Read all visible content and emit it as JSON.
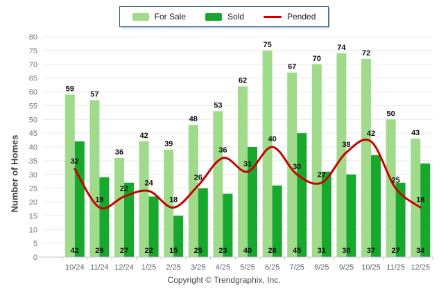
{
  "legend": {
    "items": [
      {
        "label": "For Sale",
        "kind": "bar",
        "color": "#A0DB8C"
      },
      {
        "label": "Sold",
        "kind": "bar",
        "color": "#17A82D"
      },
      {
        "label": "Pended",
        "kind": "line",
        "color": "#C80000"
      }
    ]
  },
  "footer": {
    "copyright": "Copyright © Trendgraphix, Inc."
  },
  "chart_data": {
    "type": "bar",
    "title": "",
    "categories": [
      "10/24",
      "11/24",
      "12/24",
      "1/25",
      "2/25",
      "3/25",
      "4/25",
      "5/25",
      "6/25",
      "7/25",
      "8/25",
      "9/25",
      "10/25",
      "11/25",
      "12/25"
    ],
    "series": [
      {
        "name": "For Sale",
        "type": "bar",
        "color": "#A0DB8C",
        "values": [
          59,
          57,
          36,
          42,
          39,
          48,
          53,
          62,
          75,
          67,
          70,
          74,
          72,
          50,
          43
        ]
      },
      {
        "name": "Sold",
        "type": "bar",
        "color": "#17A82D",
        "values": [
          42,
          29,
          27,
          22,
          15,
          25,
          23,
          40,
          26,
          45,
          31,
          30,
          37,
          27,
          34
        ]
      },
      {
        "name": "Pended",
        "type": "line",
        "color": "#C80000",
        "values": [
          32,
          18,
          22,
          24,
          18,
          26,
          36,
          31,
          40,
          30,
          27,
          38,
          42,
          25,
          18
        ]
      }
    ],
    "xlabel": "",
    "ylabel": "Number of Homes",
    "ylim": [
      0,
      80
    ],
    "ytick_step": 5,
    "grid": true,
    "legend_position": "top-center",
    "value_labels": {
      "for_sale": "above bars",
      "sold": "inside bar bottoms",
      "pended": "above line points"
    }
  }
}
